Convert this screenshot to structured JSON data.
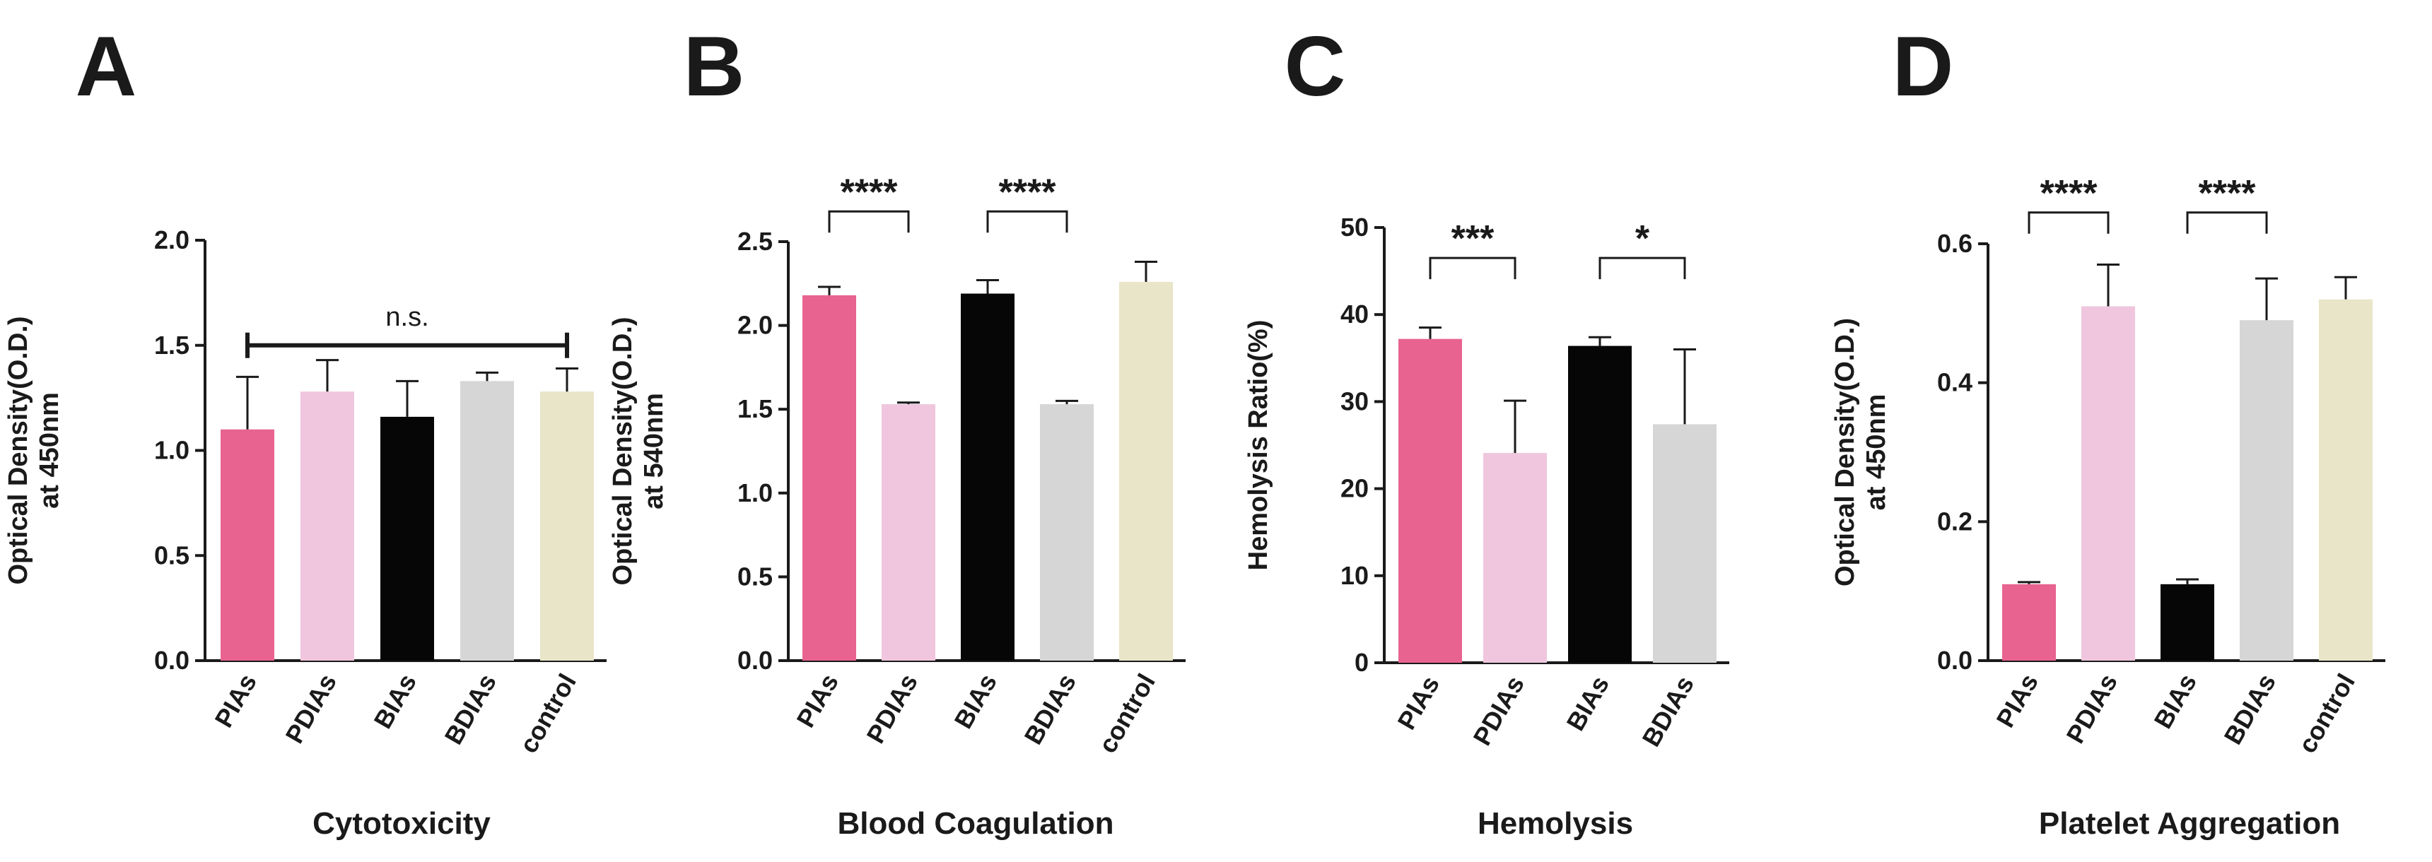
{
  "colors": {
    "PIAs": "#e8638f",
    "PDIAs": "#efc6dd",
    "BIAs": "#060606",
    "BDIAs": "#d6d6d6",
    "control": "#e9e5c8",
    "ink": "#1a1a1a"
  },
  "chart_data": [
    {
      "panel": "A",
      "type": "bar",
      "xlabel": "Cytotoxicity",
      "ylabel": "Optical Density(O.D.)",
      "ylabel2": "at 450nm",
      "categories": [
        "PIAs",
        "PDIAs",
        "BIAs",
        "BDIAs",
        "control"
      ],
      "values": [
        1.1,
        1.28,
        1.16,
        1.33,
        1.28
      ],
      "errors": [
        0.25,
        0.15,
        0.17,
        0.04,
        0.11
      ],
      "ylim": [
        0,
        2.0
      ],
      "yticks": [
        "0.0",
        "0.5",
        "1.0",
        "1.5",
        "2.0"
      ],
      "tick_values": [
        0,
        0.5,
        1.0,
        1.5,
        2.0
      ],
      "significance": [
        {
          "from": 0,
          "to": 4,
          "label": "n.s.",
          "style": "span",
          "y": 1.5
        }
      ]
    },
    {
      "panel": "B",
      "type": "bar",
      "xlabel": "Blood Coagulation",
      "ylabel": "Optical Density(O.D.)",
      "ylabel2": "at 540nm",
      "categories": [
        "PIAs",
        "PDIAs",
        "BIAs",
        "BDIAs",
        "control"
      ],
      "values": [
        2.18,
        1.53,
        2.19,
        1.53,
        2.26
      ],
      "errors": [
        0.05,
        0.01,
        0.08,
        0.02,
        0.12
      ],
      "ylim": [
        0,
        2.5
      ],
      "yticks": [
        "0.0",
        "0.5",
        "1.0",
        "1.5",
        "2.0",
        "2.5"
      ],
      "tick_values": [
        0,
        0.5,
        1.0,
        1.5,
        2.0,
        2.5
      ],
      "significance": [
        {
          "from": 0,
          "to": 1,
          "label": "****",
          "style": "bracket",
          "y": 2.68
        },
        {
          "from": 2,
          "to": 3,
          "label": "****",
          "style": "bracket",
          "y": 2.68
        }
      ]
    },
    {
      "panel": "C",
      "type": "bar",
      "xlabel": "Hemolysis",
      "ylabel": "Hemolysis Ratio(%)",
      "ylabel2": "",
      "categories": [
        "PIAs",
        "PDIAs",
        "BIAs",
        "BDIAs"
      ],
      "values": [
        37.2,
        24.1,
        36.4,
        27.4
      ],
      "errors": [
        1.3,
        6.0,
        1.0,
        8.6
      ],
      "ylim": [
        0,
        50
      ],
      "yticks": [
        "0",
        "10",
        "20",
        "30",
        "40",
        "50"
      ],
      "tick_values": [
        0,
        10,
        20,
        30,
        40,
        50
      ],
      "significance": [
        {
          "from": 0,
          "to": 1,
          "label": "***",
          "style": "bracket",
          "y": 46.5
        },
        {
          "from": 2,
          "to": 3,
          "label": "*",
          "style": "bracket",
          "y": 46.5
        }
      ]
    },
    {
      "panel": "D",
      "type": "bar",
      "xlabel": "Platelet Aggregation",
      "ylabel": "Optical Density(O.D.)",
      "ylabel2": "at 450nm",
      "categories": [
        "PIAs",
        "PDIAs",
        "BIAs",
        "BDIAs",
        "control"
      ],
      "values": [
        0.11,
        0.51,
        0.11,
        0.49,
        0.52
      ],
      "errors": [
        0.003,
        0.06,
        0.007,
        0.06,
        0.032
      ],
      "ylim": [
        0,
        0.6
      ],
      "yticks": [
        "0.0",
        "0.2",
        "0.4",
        "0.6"
      ],
      "tick_values": [
        0,
        0.2,
        0.4,
        0.6
      ],
      "significance": [
        {
          "from": 0,
          "to": 1,
          "label": "****",
          "style": "bracket",
          "y": 0.645
        },
        {
          "from": 2,
          "to": 3,
          "label": "****",
          "style": "bracket",
          "y": 0.645
        }
      ]
    }
  ]
}
